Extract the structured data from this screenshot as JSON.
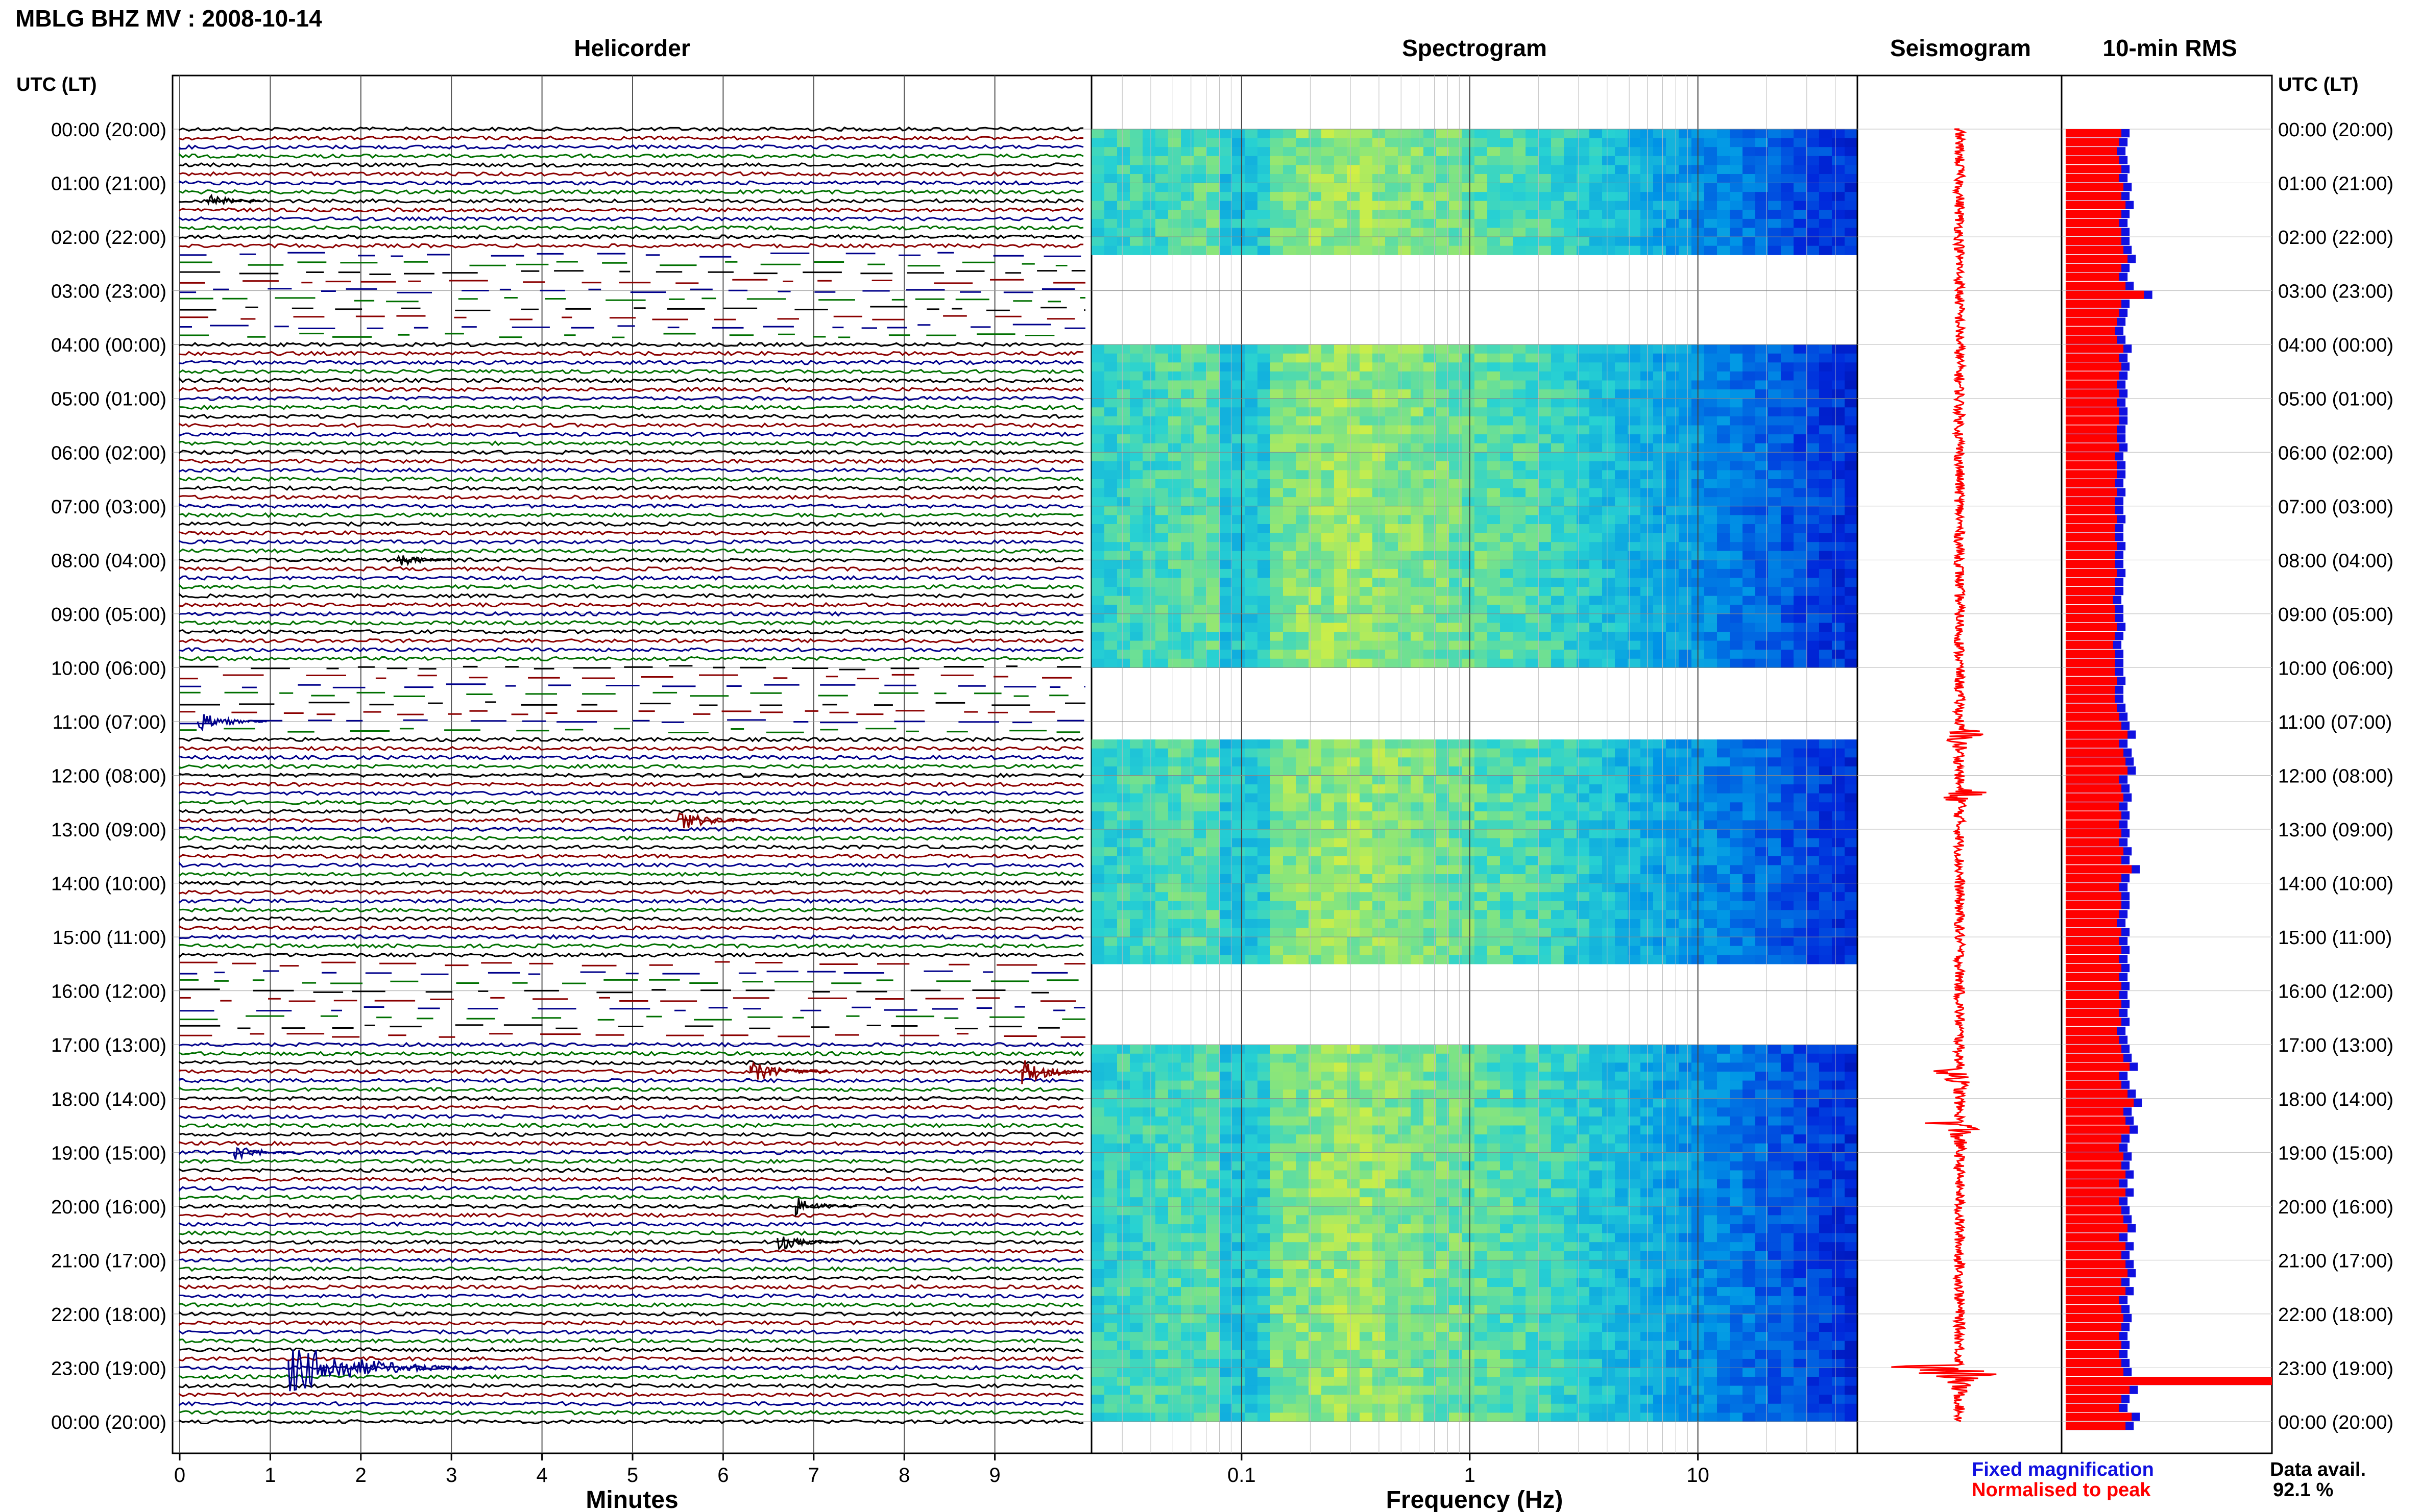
{
  "header": {
    "title": "MBLG BHZ MV : 2008-10-14",
    "utc_label_left": "UTC (LT)",
    "utc_label_right": "UTC (LT)"
  },
  "panels": {
    "helicorder": "Helicorder",
    "spectrogram": "Spectrogram",
    "seismogram": "Seismogram",
    "rms": "10-min RMS"
  },
  "colors": {
    "trace_cycle": [
      "#000000",
      "#8b0000",
      "#00008b",
      "#007000"
    ],
    "rms_fixed": "#1010e0",
    "rms_normalised": "#ff0000",
    "seismogram": "#ff0000"
  },
  "legend": {
    "fixed": "Fixed magnification",
    "normalised": "Normalised to peak",
    "avail_label": "Data avail.",
    "avail_value": "92.1 %"
  },
  "chart_data": {
    "type": "multi-panel",
    "hour_labels": [
      "00:00 (20:00)",
      "01:00 (21:00)",
      "02:00 (22:00)",
      "03:00 (23:00)",
      "04:00 (00:00)",
      "05:00 (01:00)",
      "06:00 (02:00)",
      "07:00 (03:00)",
      "08:00 (04:00)",
      "09:00 (05:00)",
      "10:00 (06:00)",
      "11:00 (07:00)",
      "12:00 (08:00)",
      "13:00 (09:00)",
      "14:00 (10:00)",
      "15:00 (11:00)",
      "16:00 (12:00)",
      "17:00 (13:00)",
      "18:00 (14:00)",
      "19:00 (15:00)",
      "20:00 (16:00)",
      "21:00 (17:00)",
      "22:00 (18:00)",
      "23:00 (19:00)",
      "00:00 (20:00)"
    ],
    "helicorder": {
      "xlabel": "Minutes",
      "x_ticks": [
        "0",
        "1",
        "2",
        "3",
        "4",
        "5",
        "6",
        "7",
        "8",
        "9"
      ],
      "xlim": [
        0,
        10
      ],
      "lines_per_hour": 6,
      "gaps_hours": [
        [
          2.2,
          3.9
        ],
        [
          9.9,
          11.3
        ],
        [
          15.4,
          16.9
        ]
      ],
      "events": [
        {
          "hour": 23.0,
          "minute": 1.2,
          "amplitude": 1.0
        },
        {
          "hour": 17.5,
          "minute": 9.3,
          "amplitude": 0.35
        },
        {
          "hour": 17.5,
          "minute": 6.3,
          "amplitude": 0.3
        },
        {
          "hour": 12.8,
          "minute": 5.5,
          "amplitude": 0.3
        },
        {
          "hour": 11.0,
          "minute": 0.2,
          "amplitude": 0.25
        },
        {
          "hour": 19.0,
          "minute": 0.6,
          "amplitude": 0.2
        },
        {
          "hour": 20.0,
          "minute": 6.8,
          "amplitude": 0.2
        },
        {
          "hour": 20.6,
          "minute": 6.6,
          "amplitude": 0.2
        },
        {
          "hour": 8.0,
          "minute": 2.4,
          "amplitude": 0.15
        },
        {
          "hour": 1.3,
          "minute": 0.3,
          "amplitude": 0.15
        }
      ]
    },
    "spectrogram": {
      "xlabel": "Frequency (Hz)",
      "scale": "log",
      "xlim": [
        0.022,
        50
      ],
      "x_ticks": [
        0.1,
        1,
        10
      ],
      "x_tick_labels": [
        "0.1",
        "1",
        "10"
      ],
      "peak_band_hz": [
        0.2,
        0.45
      ],
      "gaps_hours": [
        [
          2.2,
          3.9
        ],
        [
          9.9,
          11.3
        ],
        [
          15.4,
          16.9
        ]
      ]
    },
    "seismogram": {
      "events_hour": [
        23.0,
        17.5,
        11.2,
        12.3,
        18.5
      ]
    },
    "rms_10min": {
      "series": [
        {
          "name": "Fixed magnification",
          "values": [
            0.31,
            0.3,
            0.29,
            0.3,
            0.31,
            0.3,
            0.32,
            0.31,
            0.33,
            0.31,
            0.3,
            0.31,
            0.31,
            0.32,
            0.34,
            0.31,
            0.3,
            0.33,
            0.42,
            0.31,
            0.3,
            0.29,
            0.28,
            0.29,
            0.32,
            0.3,
            0.31,
            0.3,
            0.29,
            0.3,
            0.29,
            0.3,
            0.3,
            0.29,
            0.29,
            0.3,
            0.28,
            0.29,
            0.29,
            0.28,
            0.29,
            0.28,
            0.28,
            0.29,
            0.28,
            0.28,
            0.29,
            0.28,
            0.28,
            0.29,
            0.28,
            0.28,
            0.27,
            0.28,
            0.28,
            0.29,
            0.28,
            0.27,
            0.28,
            0.28,
            0.28,
            0.29,
            0.28,
            0.28,
            0.29,
            0.3,
            0.31,
            0.34,
            0.3,
            0.32,
            0.33,
            0.34,
            0.3,
            0.31,
            0.32,
            0.3,
            0.31,
            0.3,
            0.31,
            0.3,
            0.32,
            0.31,
            0.36,
            0.31,
            0.3,
            0.31,
            0.31,
            0.3,
            0.29,
            0.31,
            0.3,
            0.31,
            0.3,
            0.31,
            0.3,
            0.31,
            0.3,
            0.31,
            0.3,
            0.31,
            0.29,
            0.3,
            0.31,
            0.32,
            0.35,
            0.3,
            0.31,
            0.34,
            0.37,
            0.32,
            0.33,
            0.35,
            0.31,
            0.3,
            0.32,
            0.31,
            0.33,
            0.3,
            0.33,
            0.3,
            0.31,
            0.32,
            0.34,
            0.3,
            0.33,
            0.31,
            0.33,
            0.34,
            0.31,
            0.33,
            0.3,
            0.31,
            0.32,
            0.31,
            0.3,
            0.31,
            0.3,
            0.31,
            0.32,
            1.0,
            0.35,
            0.31,
            0.3,
            0.36,
            0.33
          ]
        },
        {
          "name": "Normalised to peak",
          "values": [
            0.27,
            0.26,
            0.25,
            0.26,
            0.27,
            0.26,
            0.28,
            0.27,
            0.29,
            0.27,
            0.26,
            0.27,
            0.27,
            0.28,
            0.3,
            0.27,
            0.26,
            0.29,
            0.38,
            0.27,
            0.26,
            0.25,
            0.24,
            0.25,
            0.28,
            0.26,
            0.27,
            0.26,
            0.25,
            0.26,
            0.25,
            0.26,
            0.26,
            0.25,
            0.25,
            0.26,
            0.24,
            0.25,
            0.25,
            0.24,
            0.25,
            0.24,
            0.24,
            0.25,
            0.24,
            0.24,
            0.25,
            0.24,
            0.24,
            0.25,
            0.24,
            0.24,
            0.23,
            0.24,
            0.24,
            0.25,
            0.24,
            0.23,
            0.24,
            0.24,
            0.24,
            0.25,
            0.24,
            0.24,
            0.25,
            0.26,
            0.27,
            0.3,
            0.26,
            0.28,
            0.29,
            0.3,
            0.26,
            0.27,
            0.28,
            0.26,
            0.27,
            0.26,
            0.27,
            0.26,
            0.28,
            0.27,
            0.32,
            0.27,
            0.26,
            0.27,
            0.27,
            0.26,
            0.25,
            0.27,
            0.26,
            0.27,
            0.26,
            0.27,
            0.26,
            0.27,
            0.26,
            0.27,
            0.26,
            0.27,
            0.25,
            0.26,
            0.27,
            0.28,
            0.31,
            0.26,
            0.27,
            0.3,
            0.33,
            0.28,
            0.29,
            0.31,
            0.27,
            0.26,
            0.28,
            0.27,
            0.29,
            0.26,
            0.29,
            0.26,
            0.27,
            0.28,
            0.3,
            0.26,
            0.29,
            0.27,
            0.29,
            0.3,
            0.27,
            0.29,
            0.26,
            0.27,
            0.28,
            0.27,
            0.26,
            0.27,
            0.26,
            0.27,
            0.28,
            1.0,
            0.31,
            0.27,
            0.26,
            0.32,
            0.29
          ]
        }
      ]
    }
  }
}
